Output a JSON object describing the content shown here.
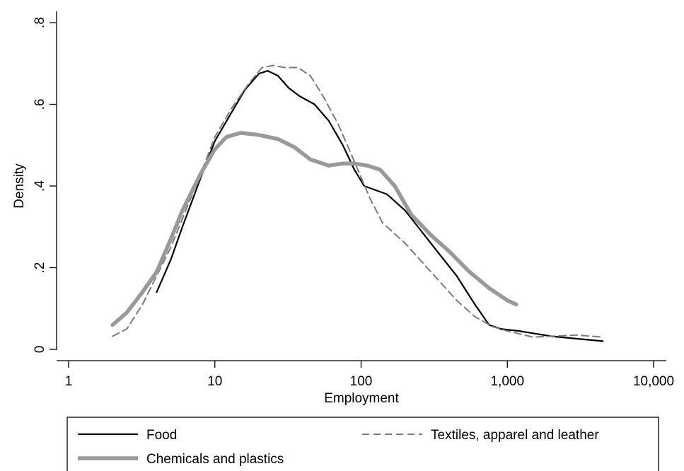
{
  "chart_data": {
    "type": "line",
    "title": "",
    "xlabel": "Employment",
    "ylabel": "Density",
    "x_scale": "log10",
    "xlim": [
      1,
      10000
    ],
    "ylim": [
      0,
      0.8
    ],
    "x_ticks": [
      1,
      10,
      100,
      1000,
      10000
    ],
    "x_tick_labels": [
      "1",
      "10",
      "100",
      "1,000",
      "10,000"
    ],
    "y_ticks": [
      0,
      0.2,
      0.4,
      0.6,
      0.8
    ],
    "y_tick_labels": [
      "0",
      ".2",
      ".4",
      ".6",
      ".8"
    ],
    "grid": false,
    "legend_position": "bottom",
    "series": [
      {
        "name": "Food",
        "color": "#000000",
        "style": "solid",
        "points": [
          [
            4.0,
            0.14
          ],
          [
            5.0,
            0.22
          ],
          [
            6.0,
            0.3
          ],
          [
            8.0,
            0.42
          ],
          [
            10.0,
            0.51
          ],
          [
            13.0,
            0.58
          ],
          [
            16.0,
            0.635
          ],
          [
            20.0,
            0.675
          ],
          [
            23.0,
            0.682
          ],
          [
            27.0,
            0.67
          ],
          [
            32.0,
            0.64
          ],
          [
            38.0,
            0.62
          ],
          [
            48.0,
            0.6
          ],
          [
            60.0,
            0.56
          ],
          [
            75.0,
            0.5
          ],
          [
            90.0,
            0.44
          ],
          [
            105.0,
            0.4
          ],
          [
            150.0,
            0.38
          ],
          [
            200.0,
            0.34
          ],
          [
            300.0,
            0.26
          ],
          [
            450.0,
            0.18
          ],
          [
            600.0,
            0.11
          ],
          [
            750.0,
            0.06
          ],
          [
            900.0,
            0.05
          ],
          [
            1200.0,
            0.045
          ],
          [
            2000.0,
            0.032
          ],
          [
            3000.0,
            0.026
          ],
          [
            4500.0,
            0.02
          ]
        ]
      },
      {
        "name": "Textiles, apparel and leather",
        "color": "#7a7a7a",
        "style": "dashed",
        "points": [
          [
            2.0,
            0.032
          ],
          [
            2.5,
            0.05
          ],
          [
            3.2,
            0.11
          ],
          [
            4.0,
            0.18
          ],
          [
            5.0,
            0.25
          ],
          [
            6.0,
            0.32
          ],
          [
            8.0,
            0.43
          ],
          [
            10.0,
            0.52
          ],
          [
            13.0,
            0.59
          ],
          [
            17.0,
            0.65
          ],
          [
            21.0,
            0.69
          ],
          [
            25.0,
            0.695
          ],
          [
            30.0,
            0.69
          ],
          [
            37.0,
            0.69
          ],
          [
            45.0,
            0.67
          ],
          [
            55.0,
            0.62
          ],
          [
            70.0,
            0.55
          ],
          [
            90.0,
            0.46
          ],
          [
            115.0,
            0.37
          ],
          [
            140.0,
            0.31
          ],
          [
            200.0,
            0.26
          ],
          [
            300.0,
            0.19
          ],
          [
            450.0,
            0.12
          ],
          [
            600.0,
            0.08
          ],
          [
            800.0,
            0.055
          ],
          [
            1000.0,
            0.045
          ],
          [
            1500.0,
            0.03
          ],
          [
            3000.0,
            0.035
          ],
          [
            4500.0,
            0.03
          ]
        ]
      },
      {
        "name": "Chemicals and plastics",
        "color": "#999999",
        "style": "solid-thick",
        "points": [
          [
            2.0,
            0.06
          ],
          [
            2.5,
            0.09
          ],
          [
            3.2,
            0.14
          ],
          [
            4.0,
            0.19
          ],
          [
            5.0,
            0.27
          ],
          [
            6.0,
            0.34
          ],
          [
            8.0,
            0.43
          ],
          [
            10.0,
            0.49
          ],
          [
            12.0,
            0.52
          ],
          [
            15.0,
            0.53
          ],
          [
            20.0,
            0.525
          ],
          [
            27.0,
            0.515
          ],
          [
            35.0,
            0.495
          ],
          [
            45.0,
            0.465
          ],
          [
            60.0,
            0.45
          ],
          [
            75.0,
            0.455
          ],
          [
            90.0,
            0.455
          ],
          [
            110.0,
            0.45
          ],
          [
            135.0,
            0.44
          ],
          [
            170.0,
            0.4
          ],
          [
            220.0,
            0.33
          ],
          [
            300.0,
            0.28
          ],
          [
            400.0,
            0.24
          ],
          [
            550.0,
            0.19
          ],
          [
            750.0,
            0.15
          ],
          [
            1000.0,
            0.12
          ],
          [
            1150.0,
            0.11
          ]
        ]
      }
    ]
  },
  "legend": {
    "items": [
      {
        "label": "Food",
        "color": "#000000",
        "style": "solid"
      },
      {
        "label": "Textiles, apparel and leather",
        "color": "#7a7a7a",
        "style": "dashed"
      },
      {
        "label": "Chemicals and plastics",
        "color": "#999999",
        "style": "solid-thick"
      }
    ]
  }
}
